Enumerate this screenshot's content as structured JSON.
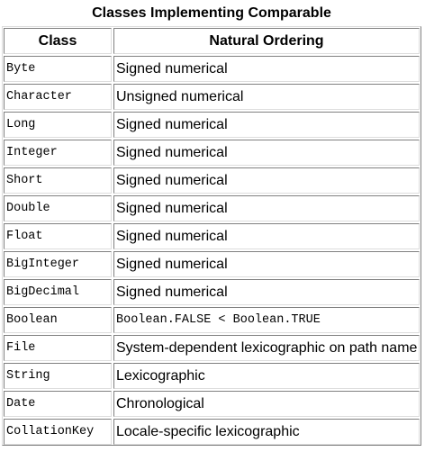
{
  "caption": "Classes Implementing Comparable",
  "table": {
    "headers": [
      "Class",
      "Natural Ordering"
    ],
    "rows": [
      {
        "cls": "Byte",
        "ordering": "Signed numerical",
        "ordering_mono": false
      },
      {
        "cls": "Character",
        "ordering": "Unsigned numerical",
        "ordering_mono": false
      },
      {
        "cls": "Long",
        "ordering": "Signed numerical",
        "ordering_mono": false
      },
      {
        "cls": "Integer",
        "ordering": "Signed numerical",
        "ordering_mono": false
      },
      {
        "cls": "Short",
        "ordering": "Signed numerical",
        "ordering_mono": false
      },
      {
        "cls": "Double",
        "ordering": "Signed numerical",
        "ordering_mono": false
      },
      {
        "cls": "Float",
        "ordering": "Signed numerical",
        "ordering_mono": false
      },
      {
        "cls": "BigInteger",
        "ordering": "Signed numerical",
        "ordering_mono": false
      },
      {
        "cls": "BigDecimal",
        "ordering": "Signed numerical",
        "ordering_mono": false
      },
      {
        "cls": "Boolean",
        "ordering": "Boolean.FALSE < Boolean.TRUE",
        "ordering_mono": true
      },
      {
        "cls": "File",
        "ordering": "System-dependent lexicographic on path name",
        "ordering_mono": false
      },
      {
        "cls": "String",
        "ordering": "Lexicographic",
        "ordering_mono": false
      },
      {
        "cls": "Date",
        "ordering": "Chronological",
        "ordering_mono": false
      },
      {
        "cls": "CollationKey",
        "ordering": "Locale-specific lexicographic",
        "ordering_mono": false
      }
    ]
  }
}
